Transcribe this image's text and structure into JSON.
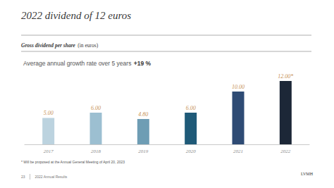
{
  "chart_data": {
    "type": "bar",
    "title": "2022 dividend of 12 euros",
    "subtitle": "Gross dividend per share",
    "subtitle_unit": "(in euros)",
    "annotation": "Average annual growth rate over 5 years",
    "annotation_value": "+19 %",
    "categories": [
      "2017",
      "2018",
      "2019",
      "2020",
      "2021",
      "2022"
    ],
    "values": [
      5,
      6,
      4.8,
      6,
      10,
      12
    ],
    "value_labels": [
      "5.00",
      "6.00",
      "4.80",
      "6.00",
      "10.00",
      "12.00*"
    ],
    "colors": [
      "#bcd3df",
      "#9cbfd1",
      "#6e9db4",
      "#1f5a78",
      "#2e4b74",
      "#1c2737"
    ],
    "ylim": [
      0,
      14
    ],
    "data_labels": true,
    "tick_labels": "x",
    "grid": false,
    "footnote": "* Will be proposed at the Annual General Meeting of April 20, 2023",
    "page": "23",
    "footer": "2022 Annual Results",
    "brand": "LVMH"
  }
}
